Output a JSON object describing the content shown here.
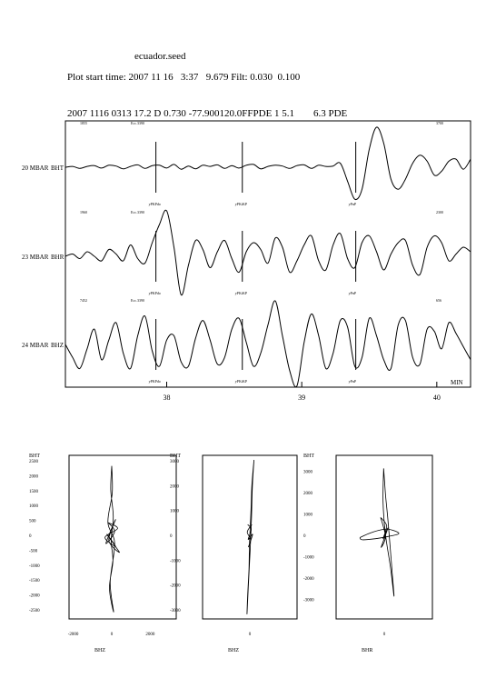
{
  "header": {
    "file_name": "ecuador.seed",
    "start_label": "Plot start time:",
    "start_date": "2007  11 16",
    "start_time": "3:37",
    "start_sec": "9.679",
    "filt_label": "Filt:",
    "filt_lo": "0.030",
    "filt_hi": "0.100",
    "event_line": "2007 1116 0313 17.2 D   0.730  -77.900120.0FFPDE  1 5.1",
    "event_mag": "6.3 PDE"
  },
  "colors": {
    "trace": "#000000",
    "background": "#ffffff"
  },
  "chart_data": [
    {
      "type": "line",
      "title": "",
      "xlabel": "MIN",
      "xlim": [
        37.25,
        40.25
      ],
      "x_ticks": [
        "38",
        "39",
        "40"
      ],
      "traces": [
        {
          "station": "20 MBAR",
          "channel": "BHT",
          "corner_small": [
            "1855",
            "Ecc.3390",
            "3700"
          ],
          "phase_marks": [
            {
              "x": 37.92,
              "label": "yPKPdo"
            },
            {
              "x": 38.56,
              "label": "yPKiKP"
            },
            {
              "x": 39.4,
              "label": "yPnP"
            }
          ],
          "y": [
            0,
            0.02,
            -0.03,
            0.02,
            0.04,
            -0.02,
            0.05,
            0.03,
            -0.04,
            0.02,
            0.06,
            -0.03,
            0.04,
            0.05,
            -0.02,
            0.07,
            -0.05,
            0.03,
            -0.04,
            0.05,
            0.02,
            0.06,
            -0.03,
            0.04,
            -0.02,
            0.05,
            0.07,
            -0.04,
            0.02,
            0.05,
            0.03,
            -0.03,
            0.04,
            0.06,
            -0.03,
            0.05,
            0.02,
            0.03,
            0.1,
            -0.35,
            -0.8,
            -0.55,
            0.45,
            1,
            0.6,
            -0.3,
            -0.55,
            -0.3,
            0.1,
            0.3,
            0.15,
            -0.2,
            -0.1,
            0.15,
            0.2,
            -0.05,
            0.2
          ]
        },
        {
          "station": "23 MBAR",
          "channel": "BHR",
          "corner_small": [
            "1960",
            "Ecc.3390",
            "2300"
          ],
          "phase_marks": [
            {
              "x": 37.92,
              "label": "yPKPdo"
            },
            {
              "x": 38.56,
              "label": "yPKiKP"
            },
            {
              "x": 39.4,
              "label": "yPnP"
            }
          ],
          "y": [
            0,
            0.05,
            -0.05,
            0.1,
            0,
            -0.1,
            0.15,
            0.05,
            -0.1,
            0.25,
            -0.05,
            -0.15,
            0.3,
            0.7,
            1,
            0.2,
            -0.85,
            -0.2,
            0.35,
            0.15,
            -0.25,
            0.1,
            0.35,
            -0.05,
            -0.35,
            0.1,
            0.3,
            0.15,
            -0.15,
            0.4,
            0.2,
            -0.35,
            -0.1,
            0.25,
            0.45,
            -0.1,
            -0.3,
            0.25,
            0.5,
            -0.05,
            -0.25,
            0.3,
            0.45,
            0.1,
            -0.3,
            0.05,
            0.3,
            0.35,
            -0.2,
            -0.4,
            0.2,
            0.45,
            0.3,
            -0.1,
            0.05,
            0.2,
            0.1
          ]
        },
        {
          "station": "24 MBAR",
          "channel": "BHZ",
          "corner_small": [
            "7452",
            "Ecc.3390",
            "656"
          ],
          "phase_marks": [
            {
              "x": 37.92,
              "label": "yPKPdo"
            },
            {
              "x": 38.56,
              "label": "yPKiKP"
            },
            {
              "x": 39.4,
              "label": "yPnP"
            }
          ],
          "y": [
            0,
            -0.3,
            -0.55,
            -0.1,
            0.35,
            -0.35,
            0.1,
            0.5,
            -0.2,
            -0.55,
            0.2,
            0.65,
            -0.15,
            -0.5,
            0.1,
            0.2,
            -0.4,
            -0.5,
            0.15,
            0.55,
            0.1,
            -0.45,
            -0.3,
            0.35,
            0.6,
            0.05,
            -0.5,
            -0.2,
            0.45,
            1,
            0.2,
            -0.6,
            -0.95,
            0.05,
            0.7,
            0.2,
            -0.55,
            -0.2,
            0.55,
            0.4,
            -0.5,
            -0.3,
            0.6,
            0.2,
            -0.35,
            -0.55,
            0.45,
            0.55,
            -0.3,
            -0.45,
            0.35,
            0.3,
            -0.1,
            0.5,
            0.25,
            -0.05,
            -0.35
          ]
        }
      ]
    },
    {
      "type": "scatter",
      "subtype": "particle_motion",
      "xlabel": "BHZ",
      "ylabel": "BHT",
      "y_ticks": [
        "2500",
        "2000",
        "1500",
        "1000",
        "500",
        "0",
        "-500",
        "-1000",
        "-1500",
        "-2000",
        "-2500"
      ],
      "x_ticks": [
        "-2000",
        "0",
        "2000"
      ],
      "ylim": [
        -2500,
        2500
      ],
      "xlim": [
        -2500,
        2500
      ],
      "loops": [
        {
          "x": [
            0,
            -50,
            80,
            -30,
            60,
            -120,
            100,
            -80,
            150,
            -200,
            30,
            0
          ],
          "y": [
            2300,
            1500,
            600,
            -200,
            -900,
            -1800,
            -2600,
            -1600,
            -300,
            400,
            1400,
            2300
          ]
        },
        {
          "x": [
            -200,
            300,
            -350,
            200,
            -250,
            400,
            -150,
            200,
            -300,
            150,
            -200
          ],
          "y": [
            400,
            200,
            -100,
            -400,
            0,
            -600,
            -200,
            500,
            -300,
            100,
            400
          ]
        }
      ]
    },
    {
      "type": "scatter",
      "subtype": "particle_motion",
      "xlabel": "BHZ",
      "ylabel": "BHT",
      "y_ticks": [
        "3000",
        "2000",
        "1000",
        "0",
        "-1000",
        "-2000",
        "-3000"
      ],
      "x_ticks": [
        "0"
      ],
      "ylim": [
        -3000,
        3000
      ],
      "xlim": [
        -3000,
        3000
      ],
      "loops": [
        {
          "x": [
            300,
            150,
            80,
            -20,
            -60,
            -150,
            -200,
            -100,
            20,
            120,
            180,
            300
          ],
          "y": [
            3000,
            2000,
            900,
            -300,
            -1400,
            -2400,
            -3200,
            -2000,
            -700,
            600,
            1900,
            3000
          ]
        },
        {
          "x": [
            -150,
            100,
            -120,
            200,
            -100,
            50,
            -180,
            150
          ],
          "y": [
            400,
            200,
            -200,
            0,
            -500,
            -200,
            100,
            400
          ]
        }
      ]
    },
    {
      "type": "scatter",
      "subtype": "particle_motion",
      "xlabel": "BHR",
      "ylabel": "BHT",
      "y_ticks": [
        "3000",
        "2000",
        "1000",
        "0",
        "-1000",
        "-2000",
        "-3000"
      ],
      "x_ticks": [
        "0"
      ],
      "ylim": [
        -3500,
        3500
      ],
      "xlim": [
        -3500,
        3500
      ],
      "loops": [
        {
          "x": [
            -50,
            100,
            300,
            500,
            650,
            800,
            500,
            100,
            -100,
            -50
          ],
          "y": [
            3100,
            1900,
            700,
            -700,
            -1800,
            -2900,
            -1500,
            0,
            1500,
            3100
          ]
        },
        {
          "x": [
            -2000,
            -1000,
            200,
            1200,
            300,
            -700,
            -1800,
            -2000
          ],
          "y": [
            -150,
            100,
            250,
            50,
            -100,
            -200,
            -250,
            -150
          ]
        },
        {
          "x": [
            -300,
            200,
            -100,
            300,
            -250,
            100,
            -300
          ],
          "y": [
            800,
            400,
            -200,
            300,
            -600,
            -100,
            800
          ]
        }
      ]
    }
  ]
}
